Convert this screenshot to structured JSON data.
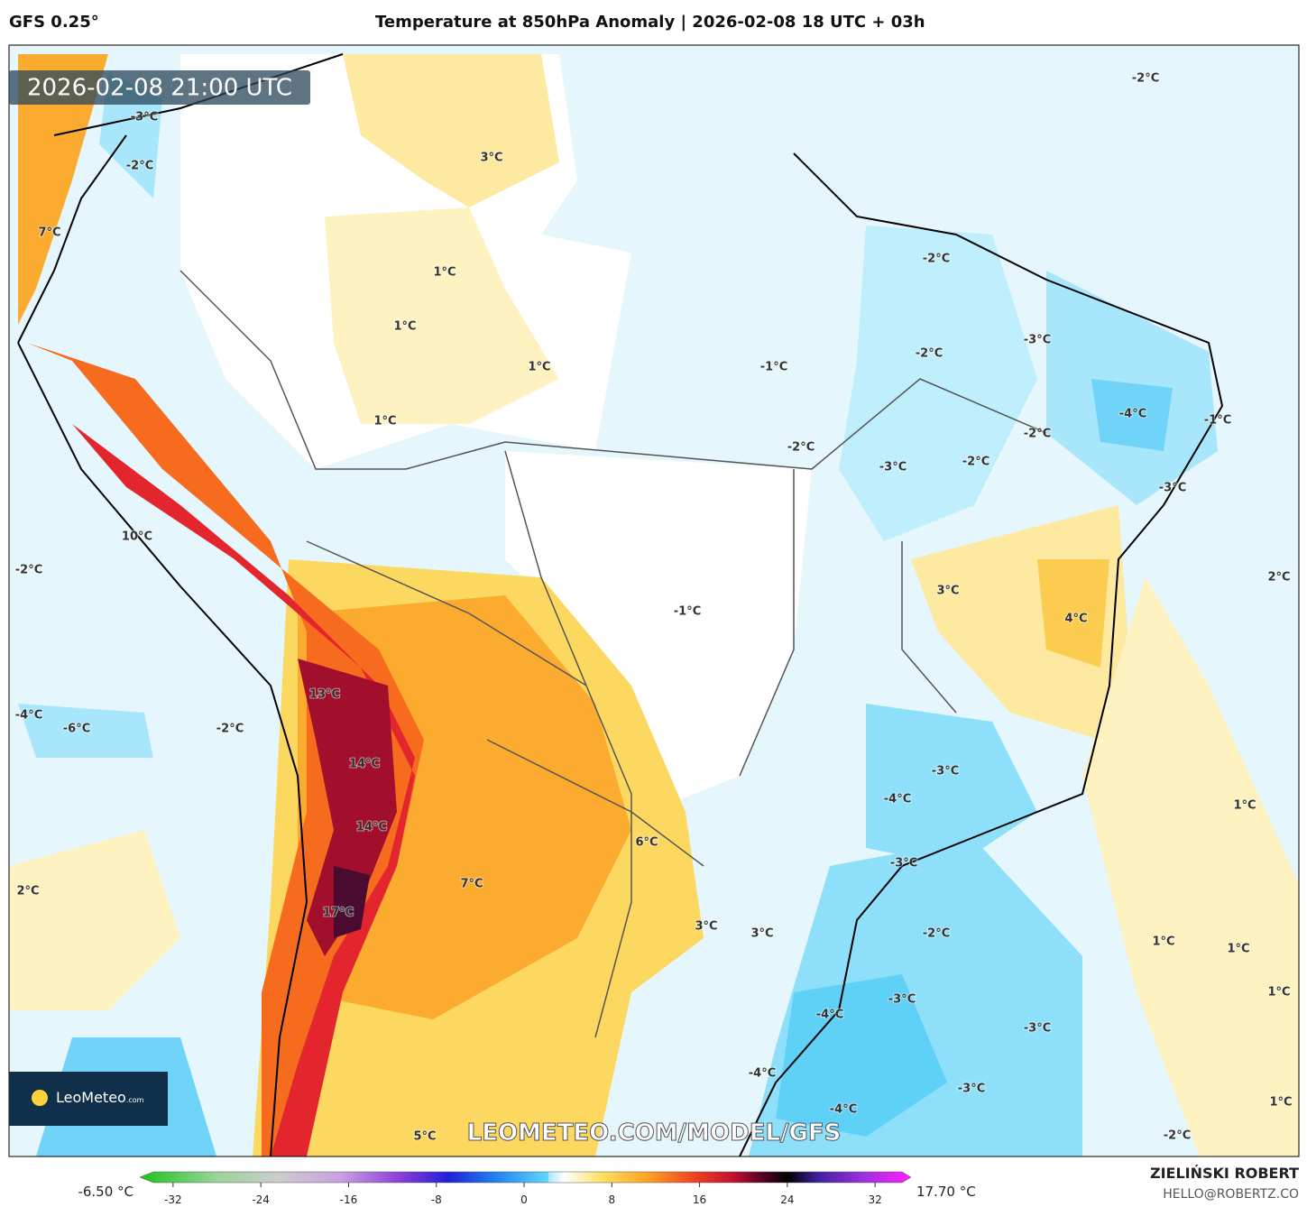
{
  "header": {
    "model": "GFS 0.25°",
    "title": "Temperature at 850hPa Anomaly | 2026-02-08 18 UTC + 03h"
  },
  "timestamp": "2026-02-08 21:00 UTC",
  "map_labels": [
    "3°C",
    "-3°C",
    "-2°C",
    "7°C",
    "1°C",
    "1°C",
    "1°C",
    "1°C",
    "-2°C",
    "-2°C",
    "-3°C",
    "-2°C",
    "-1°C",
    "-4°C",
    "-1°C",
    "-2°C",
    "-2°C",
    "-3°C",
    "-2°C",
    "-3°C",
    "10°C",
    "-2°C",
    "2°C",
    "3°C",
    "4°C",
    "-1°C",
    "13°C",
    "-4°C",
    "-6°C",
    "-2°C",
    "14°C",
    "-3°C",
    "-4°C",
    "1°C",
    "14°C",
    "6°C",
    "-3°C",
    "7°C",
    "2°C",
    "17°C",
    "3°C",
    "3°C",
    "-2°C",
    "1°C",
    "1°C",
    "1°C",
    "-3°C",
    "-4°C",
    "-3°C",
    "-4°C",
    "-3°C",
    "-4°C",
    "1°C",
    "5°C",
    "-2°C"
  ],
  "watermark": "LEOMETEO.COM/MODEL/GFS",
  "logo": {
    "name": "LeoMeteo",
    "suffix": ".com"
  },
  "colorbar": {
    "min_label": "-6.50 °C",
    "max_label": "17.70 °C",
    "ticks": [
      -32,
      -24,
      -16,
      -8,
      0,
      8,
      16,
      24,
      32
    ]
  },
  "footer": {
    "author": "ZIELIŃSKI ROBERT",
    "email": "HELLO@ROBERTZ.CO"
  }
}
